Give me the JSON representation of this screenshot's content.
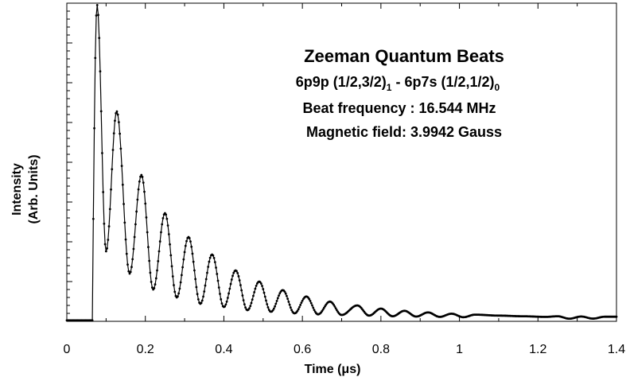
{
  "chart_data": {
    "type": "scatter",
    "title": "Zeeman Quantum Beats",
    "annotations": {
      "line1": "Zeeman Quantum Beats",
      "line2": {
        "text": "6p9p (1/2,3/2)",
        "sub1": "1",
        "mid": " - 6p7s (1/2,1/2)",
        "sub2": "0"
      },
      "line3": "Beat frequency : 16.544 MHz",
      "line4": "Magnetic field: 3.9942 Gauss"
    },
    "xlabel": "Time (μs)",
    "ylabel_line1": "Intensity",
    "ylabel_line2": "(Arb. Units)",
    "xlim": [
      0,
      1.4
    ],
    "ylim": [
      0,
      1.0
    ],
    "xticks": [
      "0",
      "0.2",
      "0.4",
      "0.6",
      "0.8",
      "1",
      "1.2",
      "1.4"
    ],
    "grid": false,
    "legend": "none",
    "signal": {
      "onset_time": 0.065,
      "beat_frequency_MHz": 16.544,
      "peaks": [
        {
          "x": 0.077,
          "y": 0.995
        },
        {
          "x": 0.127,
          "y": 0.66
        },
        {
          "x": 0.19,
          "y": 0.46
        },
        {
          "x": 0.25,
          "y": 0.34
        },
        {
          "x": 0.31,
          "y": 0.265
        },
        {
          "x": 0.37,
          "y": 0.21
        },
        {
          "x": 0.43,
          "y": 0.16
        },
        {
          "x": 0.49,
          "y": 0.125
        },
        {
          "x": 0.55,
          "y": 0.098
        },
        {
          "x": 0.61,
          "y": 0.078
        },
        {
          "x": 0.67,
          "y": 0.062
        },
        {
          "x": 0.74,
          "y": 0.05
        },
        {
          "x": 0.8,
          "y": 0.04
        },
        {
          "x": 0.86,
          "y": 0.033
        },
        {
          "x": 0.92,
          "y": 0.028
        },
        {
          "x": 0.98,
          "y": 0.024
        },
        {
          "x": 1.04,
          "y": 0.021
        },
        {
          "x": 1.1,
          "y": 0.018
        },
        {
          "x": 1.16,
          "y": 0.016
        },
        {
          "x": 1.22,
          "y": 0.014
        }
      ],
      "troughs": [
        {
          "x": 0.1,
          "y": 0.22
        },
        {
          "x": 0.16,
          "y": 0.15
        },
        {
          "x": 0.22,
          "y": 0.1
        },
        {
          "x": 0.28,
          "y": 0.075
        },
        {
          "x": 0.34,
          "y": 0.055
        },
        {
          "x": 0.4,
          "y": 0.045
        },
        {
          "x": 0.46,
          "y": 0.035
        },
        {
          "x": 0.52,
          "y": 0.03
        },
        {
          "x": 0.58,
          "y": 0.025
        },
        {
          "x": 0.64,
          "y": 0.022
        },
        {
          "x": 0.7,
          "y": 0.02
        },
        {
          "x": 0.77,
          "y": 0.018
        },
        {
          "x": 0.83,
          "y": 0.016
        },
        {
          "x": 0.89,
          "y": 0.015
        },
        {
          "x": 0.95,
          "y": 0.014
        },
        {
          "x": 1.01,
          "y": 0.013
        }
      ],
      "baseline_before_onset": 0.003,
      "baseline_tail": 0.01
    },
    "colors": {
      "line": "#000000",
      "marker": "#000000",
      "axis": "#000000"
    }
  }
}
